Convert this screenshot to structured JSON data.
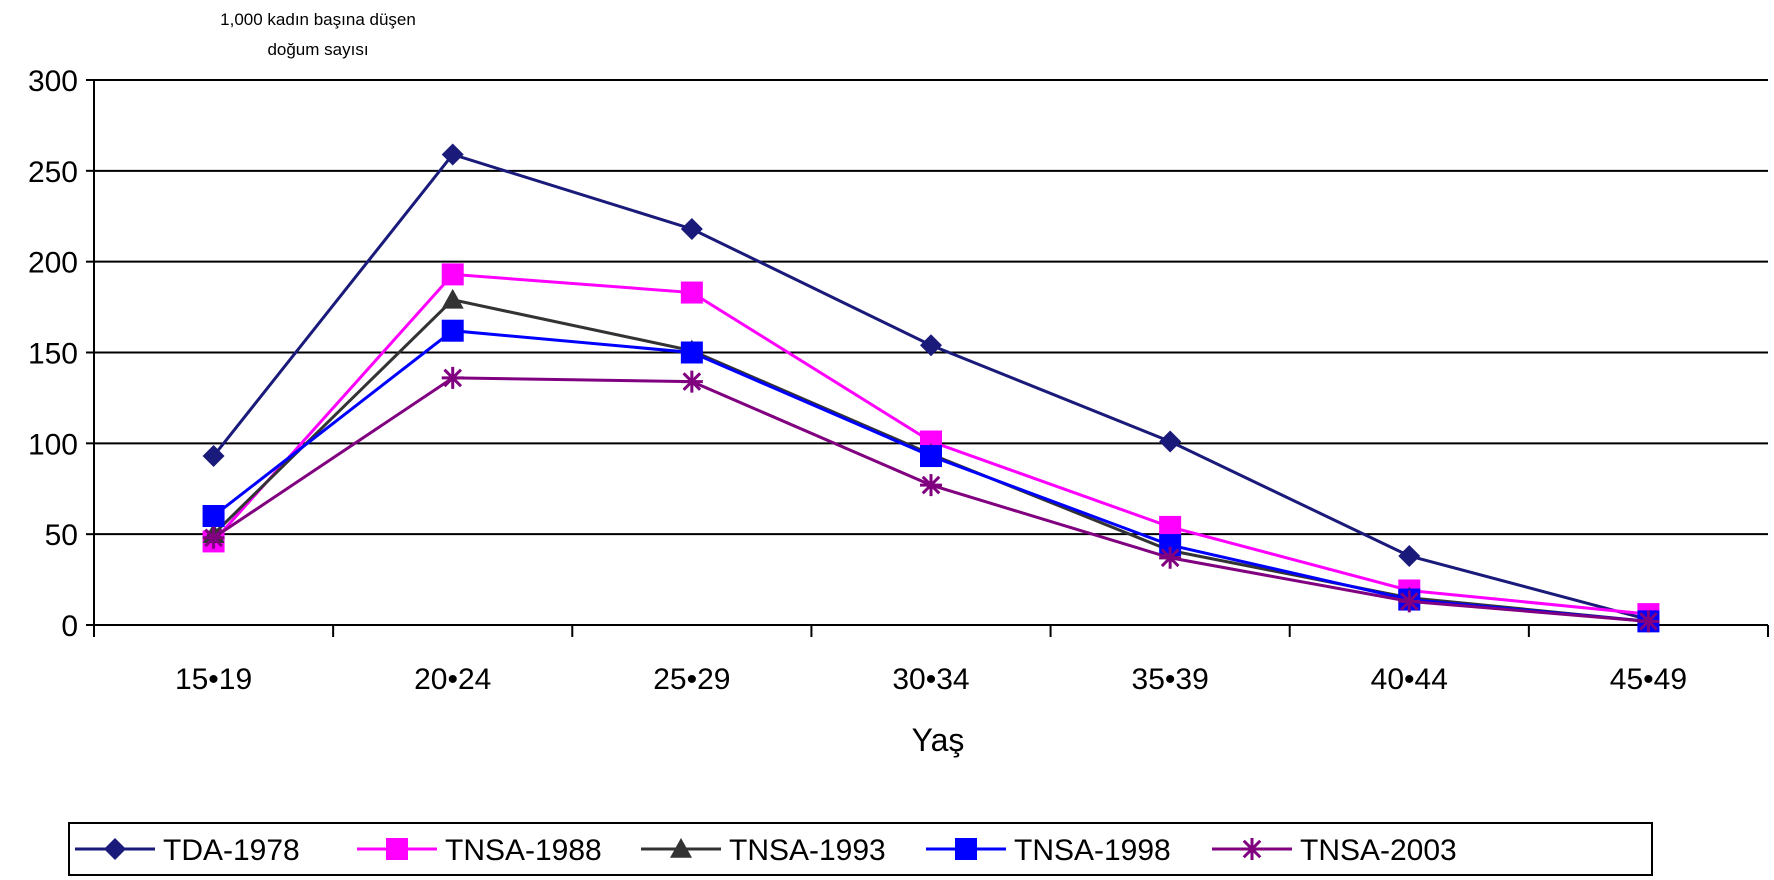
{
  "chart_data": {
    "type": "line",
    "ylabel": "1,000 kadın başına düşen doğum sayısı",
    "ylabel_lines": [
      "1,000 kadın başına düşen",
      "doğum sayısı"
    ],
    "xlabel": "Yaş",
    "categories": [
      "15•19",
      "20•24",
      "25•29",
      "30•34",
      "35•39",
      "40•44",
      "45•49"
    ],
    "ylim": [
      0,
      300
    ],
    "yticks": [
      "0",
      "50",
      "100",
      "150",
      "200",
      "250",
      "300"
    ],
    "grid": "horizontal",
    "legend_position": "bottom",
    "series": [
      {
        "name": "TDA-1978",
        "color": "#1a1a7a",
        "marker": "diamond",
        "values": [
          93,
          259,
          218,
          154,
          101,
          38,
          3
        ]
      },
      {
        "name": "TNSA-1988",
        "color": "#ff00ff",
        "marker": "square",
        "values": [
          46,
          193,
          183,
          101,
          54,
          19,
          6
        ]
      },
      {
        "name": "TNSA-1993",
        "color": "#333333",
        "marker": "triangle",
        "values": [
          50,
          179,
          151,
          94,
          41,
          15,
          2
        ]
      },
      {
        "name": "TNSA-1998",
        "color": "#0000ff",
        "marker": "square",
        "values": [
          60,
          162,
          150,
          93,
          44,
          14,
          2
        ]
      },
      {
        "name": "TNSA-2003",
        "color": "#800080",
        "marker": "star",
        "values": [
          48,
          136,
          134,
          77,
          37,
          13,
          2
        ]
      }
    ]
  }
}
